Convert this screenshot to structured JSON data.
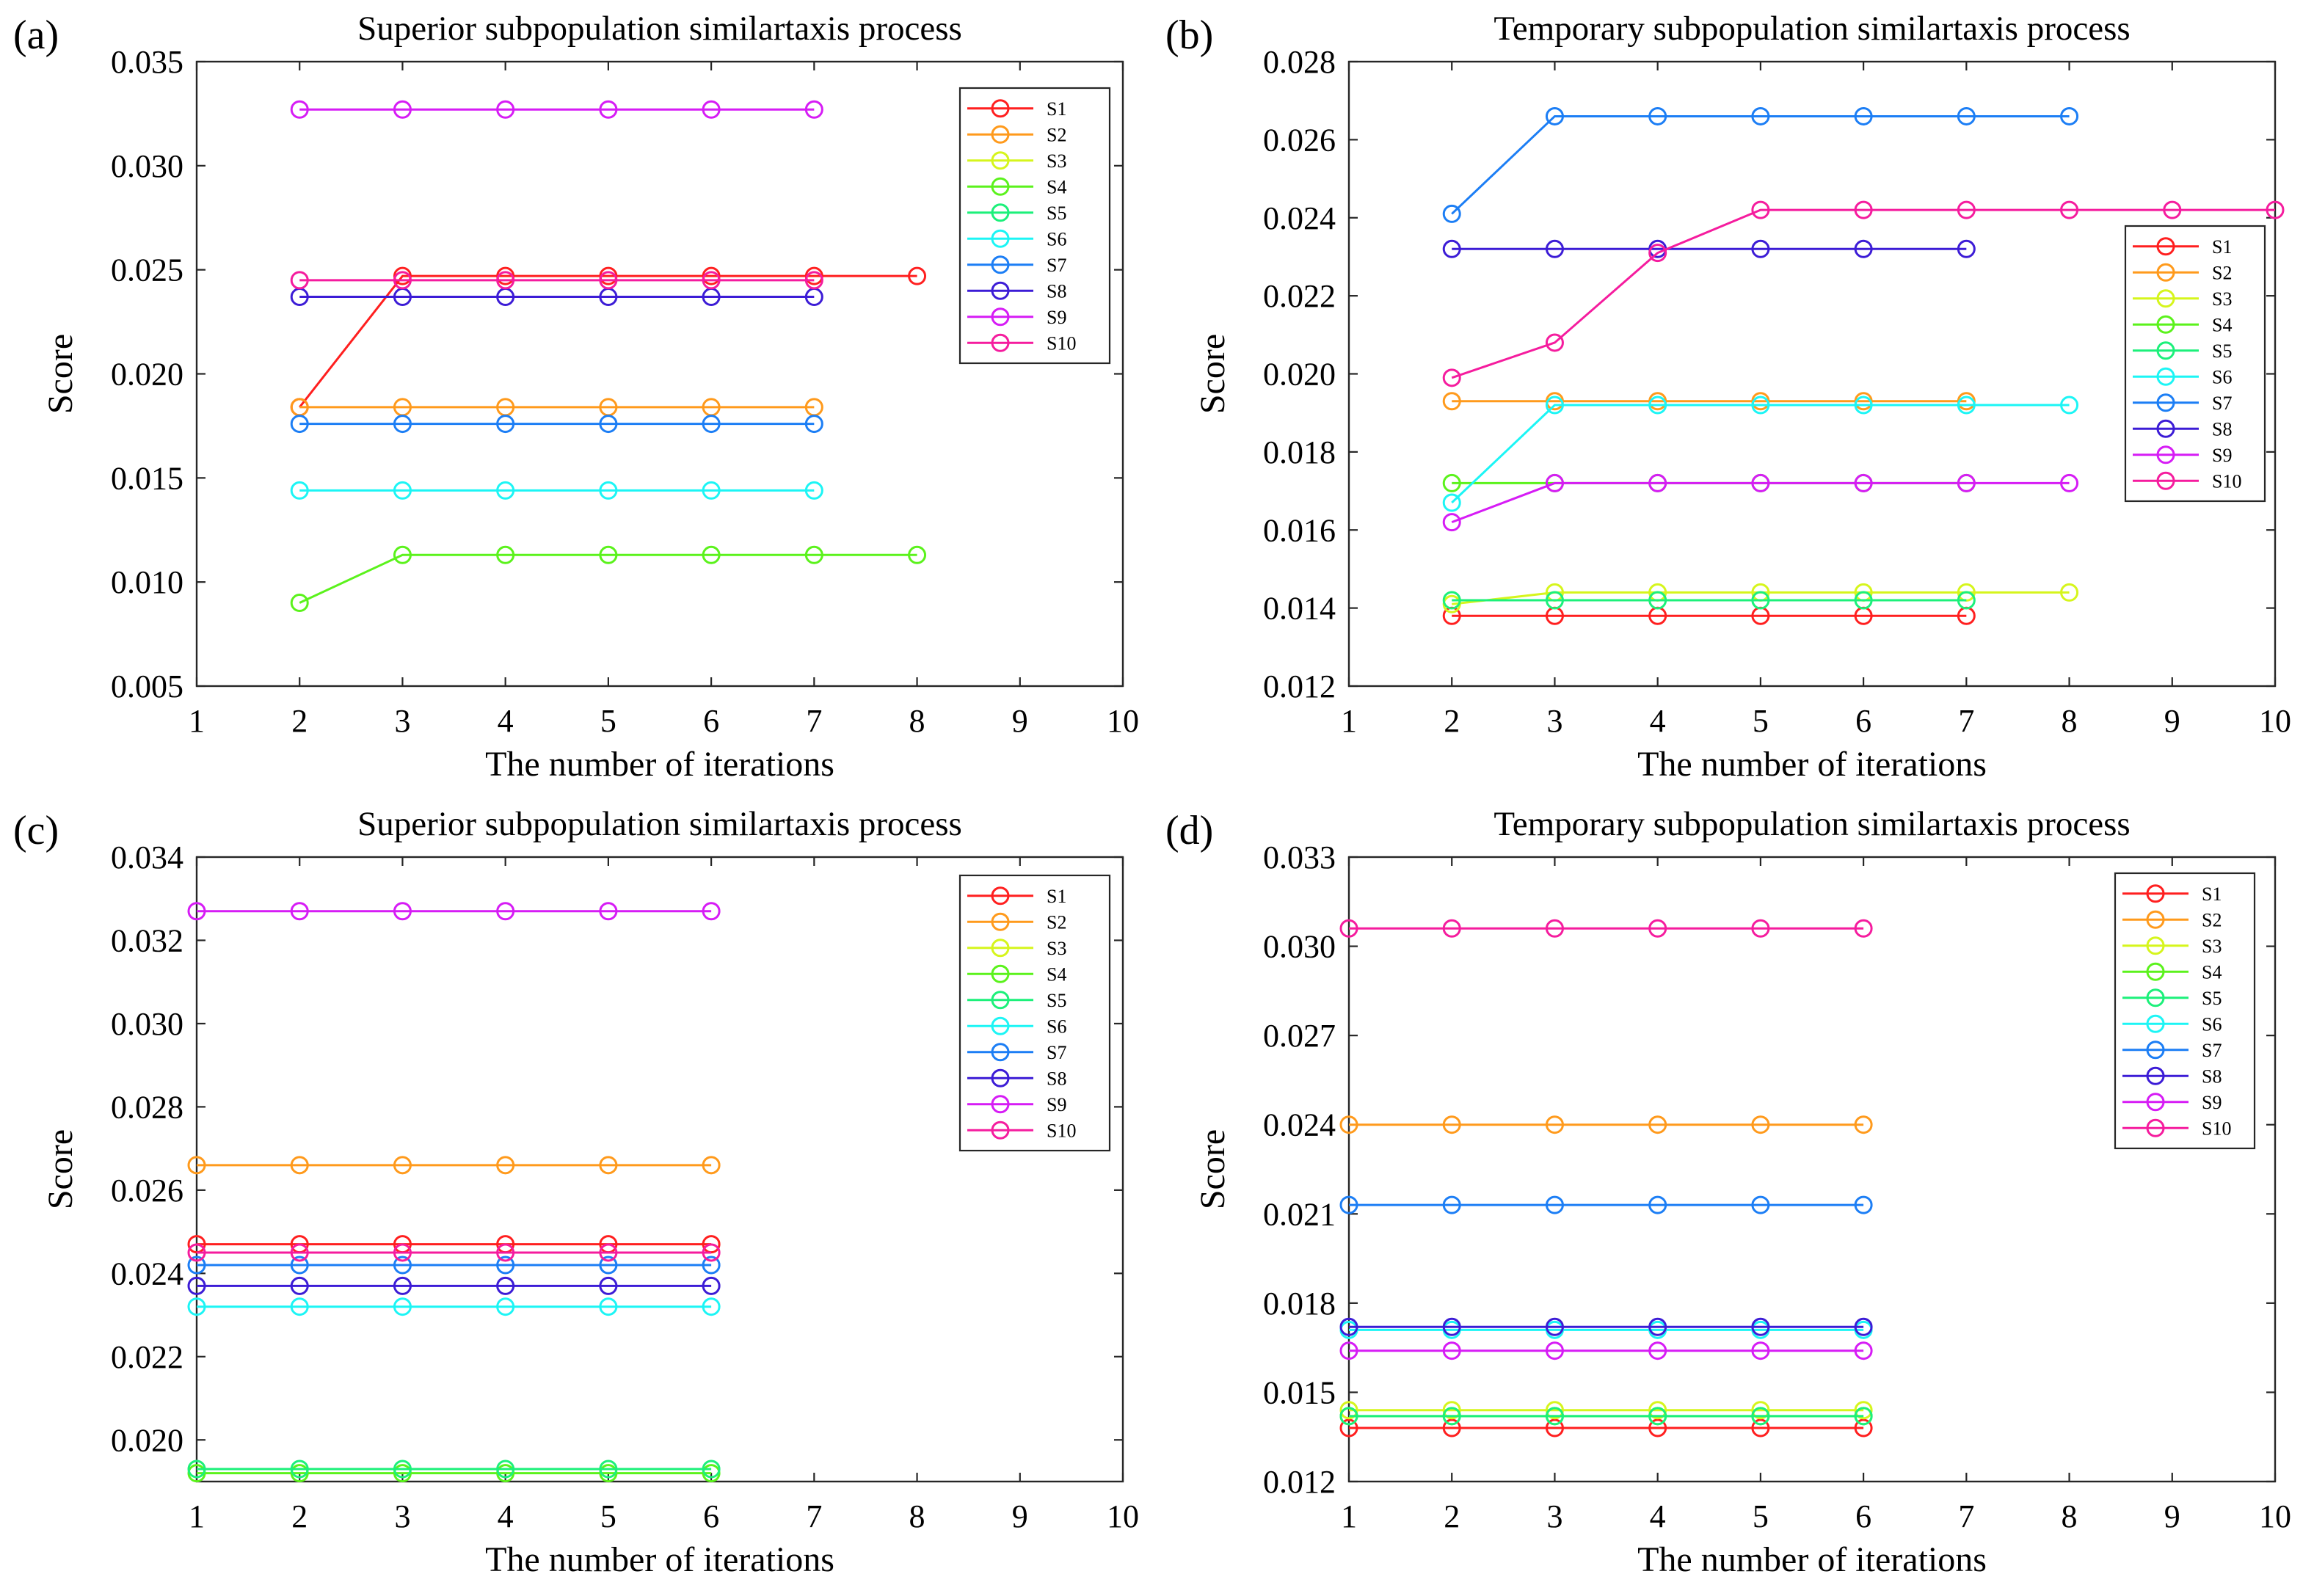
{
  "figure": {
    "panels": [
      "a",
      "b",
      "c",
      "d"
    ]
  },
  "series_colors": [
    "#ff1f1f",
    "#ff9a1c",
    "#d6f51c",
    "#5bf21c",
    "#1cf07a",
    "#1cf5f5",
    "#1c7ef5",
    "#3c1cd6",
    "#d61cf5",
    "#f51c9e"
  ],
  "chart_data": [
    {
      "panel_label": "(a)",
      "type": "line",
      "title": "Superior subpopulation similartaxis process",
      "xlabel": "The number of iterations",
      "ylabel": "Score",
      "xlim": [
        1,
        10
      ],
      "ylim": [
        0.005,
        0.035
      ],
      "xticks": [
        1,
        2,
        3,
        4,
        5,
        6,
        7,
        8,
        9,
        10
      ],
      "yticks": [
        0.005,
        0.01,
        0.015,
        0.02,
        0.025,
        0.03,
        0.035
      ],
      "ytick_labels": [
        "0.005",
        "0.010",
        "0.015",
        "0.020",
        "0.025",
        "0.030",
        "0.035"
      ],
      "legend_position": "top-right",
      "series": [
        {
          "name": "S1",
          "x": [
            2,
            3,
            4,
            5,
            6,
            7,
            8
          ],
          "y": [
            0.0184,
            0.0247,
            0.0247,
            0.0247,
            0.0247,
            0.0247,
            0.0247
          ]
        },
        {
          "name": "S2",
          "x": [
            2,
            3,
            4,
            5,
            6,
            7
          ],
          "y": [
            0.0184,
            0.0184,
            0.0184,
            0.0184,
            0.0184,
            0.0184
          ]
        },
        {
          "name": "S3",
          "x": [],
          "y": []
        },
        {
          "name": "S4",
          "x": [
            2,
            3,
            4,
            5,
            6,
            7,
            8
          ],
          "y": [
            0.009,
            0.0113,
            0.0113,
            0.0113,
            0.0113,
            0.0113,
            0.0113
          ]
        },
        {
          "name": "S5",
          "x": [],
          "y": []
        },
        {
          "name": "S6",
          "x": [
            2,
            3,
            4,
            5,
            6,
            7
          ],
          "y": [
            0.0144,
            0.0144,
            0.0144,
            0.0144,
            0.0144,
            0.0144
          ]
        },
        {
          "name": "S7",
          "x": [
            2,
            3,
            4,
            5,
            6,
            7
          ],
          "y": [
            0.0176,
            0.0176,
            0.0176,
            0.0176,
            0.0176,
            0.0176
          ]
        },
        {
          "name": "S8",
          "x": [
            2,
            3,
            4,
            5,
            6,
            7
          ],
          "y": [
            0.0237,
            0.0237,
            0.0237,
            0.0237,
            0.0237,
            0.0237
          ]
        },
        {
          "name": "S9",
          "x": [
            2,
            3,
            4,
            5,
            6,
            7
          ],
          "y": [
            0.0327,
            0.0327,
            0.0327,
            0.0327,
            0.0327,
            0.0327
          ]
        },
        {
          "name": "S10",
          "x": [
            2,
            3,
            4,
            5,
            6,
            7
          ],
          "y": [
            0.0245,
            0.0245,
            0.0245,
            0.0245,
            0.0245,
            0.0245
          ]
        }
      ]
    },
    {
      "panel_label": "(b)",
      "type": "line",
      "title": "Temporary subpopulation similartaxis process",
      "xlabel": "The number of iterations",
      "ylabel": "Score",
      "xlim": [
        1,
        10
      ],
      "ylim": [
        0.012,
        0.028
      ],
      "xticks": [
        1,
        2,
        3,
        4,
        5,
        6,
        7,
        8,
        9,
        10
      ],
      "yticks": [
        0.012,
        0.014,
        0.016,
        0.018,
        0.02,
        0.022,
        0.024,
        0.026,
        0.028
      ],
      "ytick_labels": [
        "0.012",
        "0.014",
        "0.016",
        "0.018",
        "0.020",
        "0.022",
        "0.024",
        "0.026",
        "0.028"
      ],
      "legend_position": "right",
      "series": [
        {
          "name": "S1",
          "x": [
            2,
            3,
            4,
            5,
            6,
            7
          ],
          "y": [
            0.0138,
            0.0138,
            0.0138,
            0.0138,
            0.0138,
            0.0138
          ]
        },
        {
          "name": "S2",
          "x": [
            2,
            3,
            4,
            5,
            6,
            7
          ],
          "y": [
            0.0193,
            0.0193,
            0.0193,
            0.0193,
            0.0193,
            0.0193
          ]
        },
        {
          "name": "S3",
          "x": [
            2,
            3,
            4,
            5,
            6,
            7,
            8
          ],
          "y": [
            0.0141,
            0.0144,
            0.0144,
            0.0144,
            0.0144,
            0.0144,
            0.0144
          ]
        },
        {
          "name": "S4",
          "x": [
            2,
            3,
            4,
            5,
            6,
            7
          ],
          "y": [
            0.0172,
            0.0172,
            0.0172,
            0.0172,
            0.0172,
            0.0172
          ]
        },
        {
          "name": "S5",
          "x": [
            2,
            3,
            4,
            5,
            6,
            7
          ],
          "y": [
            0.0142,
            0.0142,
            0.0142,
            0.0142,
            0.0142,
            0.0142
          ]
        },
        {
          "name": "S6",
          "x": [
            2,
            3,
            4,
            5,
            6,
            7,
            8
          ],
          "y": [
            0.0167,
            0.0192,
            0.0192,
            0.0192,
            0.0192,
            0.0192,
            0.0192
          ]
        },
        {
          "name": "S7",
          "x": [
            2,
            3,
            4,
            5,
            6,
            7,
            8
          ],
          "y": [
            0.0241,
            0.0266,
            0.0266,
            0.0266,
            0.0266,
            0.0266,
            0.0266
          ]
        },
        {
          "name": "S8",
          "x": [
            2,
            3,
            4,
            5,
            6,
            7
          ],
          "y": [
            0.0232,
            0.0232,
            0.0232,
            0.0232,
            0.0232,
            0.0232
          ]
        },
        {
          "name": "S9",
          "x": [
            2,
            3,
            4,
            5,
            6,
            7,
            8
          ],
          "y": [
            0.0162,
            0.0172,
            0.0172,
            0.0172,
            0.0172,
            0.0172,
            0.0172
          ]
        },
        {
          "name": "S10",
          "x": [
            2,
            3,
            4,
            5,
            6,
            7,
            8,
            9,
            10
          ],
          "y": [
            0.0199,
            0.0208,
            0.0231,
            0.0242,
            0.0242,
            0.0242,
            0.0242,
            0.0242,
            0.0242
          ]
        }
      ]
    },
    {
      "panel_label": "(c)",
      "type": "line",
      "title": "Superior subpopulation similartaxis process",
      "xlabel": "The number of iterations",
      "ylabel": "Score",
      "xlim": [
        1,
        10
      ],
      "ylim": [
        0.019,
        0.034
      ],
      "xticks": [
        1,
        2,
        3,
        4,
        5,
        6,
        7,
        8,
        9,
        10
      ],
      "yticks": [
        0.02,
        0.022,
        0.024,
        0.026,
        0.028,
        0.03,
        0.032,
        0.034
      ],
      "ytick_labels": [
        "0.020",
        "0.022",
        "0.024",
        "0.026",
        "0.028",
        "0.030",
        "0.032",
        "0.034"
      ],
      "legend_position": "top-right",
      "series": [
        {
          "name": "S1",
          "x": [
            1,
            2,
            3,
            4,
            5,
            6
          ],
          "y": [
            0.0247,
            0.0247,
            0.0247,
            0.0247,
            0.0247,
            0.0247
          ]
        },
        {
          "name": "S2",
          "x": [
            1,
            2,
            3,
            4,
            5,
            6
          ],
          "y": [
            0.0266,
            0.0266,
            0.0266,
            0.0266,
            0.0266,
            0.0266
          ]
        },
        {
          "name": "S3",
          "x": [],
          "y": []
        },
        {
          "name": "S4",
          "x": [
            1,
            2,
            3,
            4,
            5,
            6
          ],
          "y": [
            0.0192,
            0.0192,
            0.0192,
            0.0192,
            0.0192,
            0.0192
          ]
        },
        {
          "name": "S5",
          "x": [
            1,
            2,
            3,
            4,
            5,
            6
          ],
          "y": [
            0.0193,
            0.0193,
            0.0193,
            0.0193,
            0.0193,
            0.0193
          ]
        },
        {
          "name": "S6",
          "x": [
            1,
            2,
            3,
            4,
            5,
            6
          ],
          "y": [
            0.0232,
            0.0232,
            0.0232,
            0.0232,
            0.0232,
            0.0232
          ]
        },
        {
          "name": "S7",
          "x": [
            1,
            2,
            3,
            4,
            5,
            6
          ],
          "y": [
            0.0242,
            0.0242,
            0.0242,
            0.0242,
            0.0242,
            0.0242
          ]
        },
        {
          "name": "S8",
          "x": [
            1,
            2,
            3,
            4,
            5,
            6
          ],
          "y": [
            0.0237,
            0.0237,
            0.0237,
            0.0237,
            0.0237,
            0.0237
          ]
        },
        {
          "name": "S9",
          "x": [
            1,
            2,
            3,
            4,
            5,
            6
          ],
          "y": [
            0.0327,
            0.0327,
            0.0327,
            0.0327,
            0.0327,
            0.0327
          ]
        },
        {
          "name": "S10",
          "x": [
            1,
            2,
            3,
            4,
            5,
            6
          ],
          "y": [
            0.0245,
            0.0245,
            0.0245,
            0.0245,
            0.0245,
            0.0245
          ]
        }
      ]
    },
    {
      "panel_label": "(d)",
      "type": "line",
      "title": "Temporary subpopulation similartaxis process",
      "xlabel": "The number of iterations",
      "ylabel": "Score",
      "xlim": [
        1,
        10
      ],
      "ylim": [
        0.012,
        0.033
      ],
      "xticks": [
        1,
        2,
        3,
        4,
        5,
        6,
        7,
        8,
        9,
        10
      ],
      "yticks": [
        0.012,
        0.015,
        0.018,
        0.021,
        0.024,
        0.027,
        0.03,
        0.033
      ],
      "ytick_labels": [
        "0.012",
        "0.015",
        "0.018",
        "0.021",
        "0.024",
        "0.027",
        "0.030",
        "0.033"
      ],
      "legend_position": "top-right",
      "series": [
        {
          "name": "S1",
          "x": [
            1,
            2,
            3,
            4,
            5,
            6
          ],
          "y": [
            0.0138,
            0.0138,
            0.0138,
            0.0138,
            0.0138,
            0.0138
          ]
        },
        {
          "name": "S2",
          "x": [
            1,
            2,
            3,
            4,
            5,
            6
          ],
          "y": [
            0.024,
            0.024,
            0.024,
            0.024,
            0.024,
            0.024
          ]
        },
        {
          "name": "S3",
          "x": [
            1,
            2,
            3,
            4,
            5,
            6
          ],
          "y": [
            0.0144,
            0.0144,
            0.0144,
            0.0144,
            0.0144,
            0.0144
          ]
        },
        {
          "name": "S4",
          "x": [
            1,
            2,
            3,
            4,
            5,
            6
          ],
          "y": [
            0.0142,
            0.0142,
            0.0142,
            0.0142,
            0.0142,
            0.0142
          ]
        },
        {
          "name": "S5",
          "x": [
            1,
            2,
            3,
            4,
            5,
            6
          ],
          "y": [
            0.0142,
            0.0142,
            0.0142,
            0.0142,
            0.0142,
            0.0142
          ]
        },
        {
          "name": "S6",
          "x": [
            1,
            2,
            3,
            4,
            5,
            6
          ],
          "y": [
            0.0171,
            0.0171,
            0.0171,
            0.0171,
            0.0171,
            0.0171
          ]
        },
        {
          "name": "S7",
          "x": [
            1,
            2,
            3,
            4,
            5,
            6
          ],
          "y": [
            0.0213,
            0.0213,
            0.0213,
            0.0213,
            0.0213,
            0.0213
          ]
        },
        {
          "name": "S8",
          "x": [
            1,
            2,
            3,
            4,
            5,
            6
          ],
          "y": [
            0.0172,
            0.0172,
            0.0172,
            0.0172,
            0.0172,
            0.0172
          ]
        },
        {
          "name": "S9",
          "x": [
            1,
            2,
            3,
            4,
            5,
            6
          ],
          "y": [
            0.0164,
            0.0164,
            0.0164,
            0.0164,
            0.0164,
            0.0164
          ]
        },
        {
          "name": "S10",
          "x": [
            1,
            2,
            3,
            4,
            5,
            6
          ],
          "y": [
            0.0306,
            0.0306,
            0.0306,
            0.0306,
            0.0306,
            0.0306
          ]
        }
      ]
    }
  ]
}
